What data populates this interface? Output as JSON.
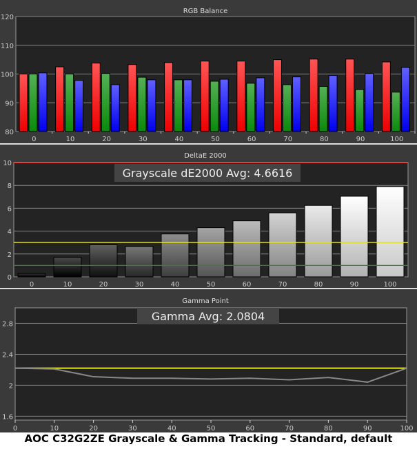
{
  "caption": "AOC C32G2ZE Grayscale & Gamma Tracking - Standard, default",
  "chart_data": [
    {
      "type": "bar",
      "title": "RGB Balance",
      "categories": [
        "0",
        "10",
        "20",
        "30",
        "40",
        "50",
        "60",
        "70",
        "80",
        "90",
        "100"
      ],
      "ylim": [
        80,
        120
      ],
      "yticks": [
        "80",
        "90",
        "100",
        "110",
        "120"
      ],
      "grid": true,
      "series": [
        {
          "color": "#ff2020",
          "values": [
            100.0,
            102.5,
            103.8,
            103.3,
            104.0,
            104.5,
            104.5,
            105.0,
            105.2,
            105.2,
            104.2
          ]
        },
        {
          "color": "#20a020",
          "values": [
            100.0,
            100.0,
            100.2,
            98.9,
            98.0,
            97.5,
            96.8,
            96.3,
            95.7,
            94.6,
            93.7
          ]
        },
        {
          "color": "#3030ff",
          "values": [
            100.4,
            97.8,
            96.3,
            98.0,
            98.0,
            98.2,
            98.7,
            99.0,
            99.5,
            100.2,
            102.3
          ]
        }
      ]
    },
    {
      "type": "bar",
      "title": "DeltaE 2000",
      "annotation": "Grayscale dE2000 Avg: 4.6616",
      "categories": [
        "0",
        "10",
        "20",
        "30",
        "40",
        "50",
        "60",
        "70",
        "80",
        "90",
        "100"
      ],
      "values": [
        0.3,
        1.7,
        2.8,
        2.65,
        3.75,
        4.3,
        4.9,
        5.6,
        6.25,
        7.05,
        7.9
      ],
      "ylim": [
        0,
        10
      ],
      "yticks": [
        "0",
        "2",
        "4",
        "6",
        "8",
        "10"
      ],
      "reference_lines": [
        {
          "value": 10,
          "color": "#e04040"
        },
        {
          "value": 3,
          "color": "#e0e020"
        },
        {
          "value": 1,
          "color": "#2a8a2a"
        }
      ],
      "grid": true
    },
    {
      "type": "line",
      "title": "Gamma Point",
      "annotation": "Gamma Avg: 2.0804",
      "x": [
        0,
        10,
        20,
        30,
        40,
        50,
        60,
        70,
        80,
        90,
        100
      ],
      "y": [
        2.22,
        2.21,
        2.11,
        2.09,
        2.09,
        2.08,
        2.09,
        2.07,
        2.1,
        2.04,
        2.22
      ],
      "target": {
        "value": 2.22,
        "color": "#e8e820"
      },
      "xlim": [
        0,
        100
      ],
      "ylim": [
        1.55,
        3.0
      ],
      "xticks": [
        "0",
        "10",
        "20",
        "30",
        "40",
        "50",
        "60",
        "70",
        "80",
        "90",
        "100"
      ],
      "yticks": [
        "1.6",
        "2",
        "2.4",
        "2.8"
      ],
      "grid": true
    }
  ]
}
